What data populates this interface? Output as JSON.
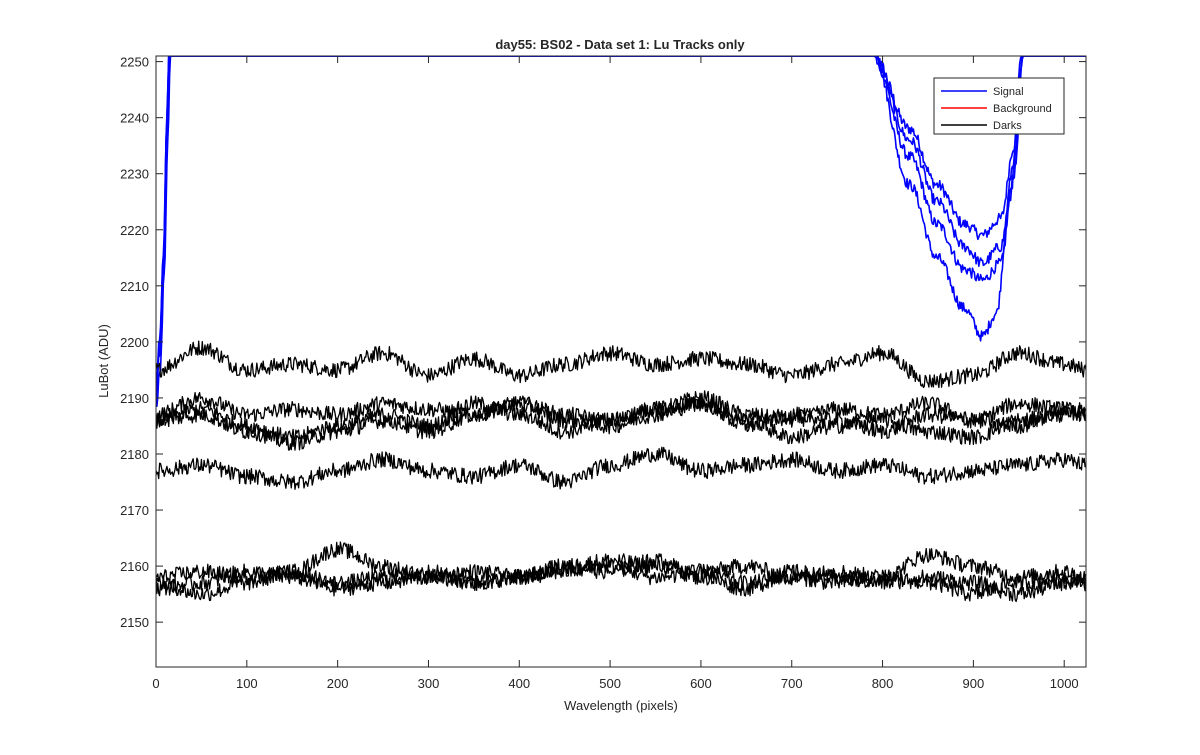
{
  "chart_data": {
    "type": "line",
    "title": "day55: BS02 - Data set 1: Lu Tracks only",
    "xlabel": "Wavelength (pixels)",
    "ylabel": "LuBot (ADU)",
    "xlim": [
      0,
      1024
    ],
    "ylim": [
      2142,
      2251
    ],
    "xticks": [
      0,
      100,
      200,
      300,
      400,
      500,
      600,
      700,
      800,
      900,
      1000
    ],
    "yticks": [
      2150,
      2160,
      2170,
      2180,
      2190,
      2200,
      2210,
      2220,
      2230,
      2240,
      2250
    ],
    "grid": false,
    "legend": {
      "placement": "top-right",
      "entries": [
        {
          "label": "Signal",
          "color": "#0000ff"
        },
        {
          "label": "Background",
          "color": "#ff0000"
        },
        {
          "label": "Darks",
          "color": "#000000"
        }
      ]
    },
    "series": [
      {
        "group": "Signal",
        "color": "#0000ff",
        "points": [
          [
            0,
            2192
          ],
          [
            4,
            2200
          ],
          [
            8,
            2215
          ],
          [
            12,
            2240
          ],
          [
            14,
            2251
          ],
          [
            790,
            2251
          ],
          [
            830,
            2238
          ],
          [
            860,
            2228
          ],
          [
            890,
            2221
          ],
          [
            910,
            2219
          ],
          [
            930,
            2222
          ],
          [
            945,
            2235
          ],
          [
            955,
            2251
          ],
          [
            1024,
            2251
          ]
        ]
      },
      {
        "group": "Signal",
        "color": "#0000ff",
        "points": [
          [
            0,
            2190
          ],
          [
            4,
            2198
          ],
          [
            8,
            2213
          ],
          [
            12,
            2238
          ],
          [
            15,
            2251
          ],
          [
            790,
            2251
          ],
          [
            830,
            2233
          ],
          [
            860,
            2221
          ],
          [
            890,
            2213
          ],
          [
            910,
            2211
          ],
          [
            930,
            2214
          ],
          [
            945,
            2230
          ],
          [
            955,
            2251
          ],
          [
            1024,
            2251
          ]
        ]
      },
      {
        "group": "Signal",
        "color": "#0000ff",
        "points": [
          [
            0,
            2188
          ],
          [
            5,
            2196
          ],
          [
            9,
            2212
          ],
          [
            13,
            2236
          ],
          [
            16,
            2251
          ],
          [
            790,
            2251
          ],
          [
            830,
            2228
          ],
          [
            860,
            2215
          ],
          [
            890,
            2206
          ],
          [
            910,
            2201
          ],
          [
            925,
            2205
          ],
          [
            940,
            2225
          ],
          [
            953,
            2251
          ],
          [
            1024,
            2251
          ]
        ]
      },
      {
        "group": "Signal",
        "color": "#0000ff",
        "points": [
          [
            0,
            2191
          ],
          [
            4,
            2199
          ],
          [
            8,
            2214
          ],
          [
            12,
            2239
          ],
          [
            14,
            2251
          ],
          [
            790,
            2251
          ],
          [
            830,
            2236
          ],
          [
            860,
            2225
          ],
          [
            890,
            2217
          ],
          [
            910,
            2214
          ],
          [
            930,
            2217
          ],
          [
            945,
            2232
          ],
          [
            955,
            2251
          ],
          [
            1024,
            2251
          ]
        ]
      },
      {
        "group": "Darks",
        "color": "#000000",
        "points": [
          [
            0,
            2195
          ],
          [
            50,
            2199
          ],
          [
            100,
            2195
          ],
          [
            150,
            2196
          ],
          [
            200,
            2195
          ],
          [
            250,
            2198
          ],
          [
            300,
            2194
          ],
          [
            350,
            2197
          ],
          [
            400,
            2194
          ],
          [
            450,
            2196
          ],
          [
            500,
            2198
          ],
          [
            550,
            2196
          ],
          [
            600,
            2197
          ],
          [
            650,
            2196
          ],
          [
            700,
            2194
          ],
          [
            750,
            2196
          ],
          [
            800,
            2198
          ],
          [
            850,
            2193
          ],
          [
            900,
            2194
          ],
          [
            950,
            2198
          ],
          [
            1000,
            2196
          ],
          [
            1024,
            2195
          ]
        ]
      },
      {
        "group": "Darks",
        "color": "#000000",
        "points": [
          [
            0,
            2187
          ],
          [
            50,
            2190
          ],
          [
            100,
            2187
          ],
          [
            150,
            2188
          ],
          [
            200,
            2187
          ],
          [
            250,
            2189
          ],
          [
            300,
            2188
          ],
          [
            350,
            2187
          ],
          [
            400,
            2189
          ],
          [
            450,
            2187
          ],
          [
            500,
            2186
          ],
          [
            550,
            2188
          ],
          [
            600,
            2190
          ],
          [
            650,
            2187
          ],
          [
            700,
            2186
          ],
          [
            750,
            2188
          ],
          [
            800,
            2187
          ],
          [
            850,
            2189
          ],
          [
            900,
            2186
          ],
          [
            950,
            2189
          ],
          [
            1000,
            2188
          ],
          [
            1024,
            2187
          ]
        ]
      },
      {
        "group": "Darks",
        "color": "#000000",
        "points": [
          [
            0,
            2186
          ],
          [
            50,
            2188
          ],
          [
            100,
            2185
          ],
          [
            150,
            2183
          ],
          [
            200,
            2185
          ],
          [
            250,
            2187
          ],
          [
            300,
            2185
          ],
          [
            350,
            2189
          ],
          [
            400,
            2187
          ],
          [
            450,
            2184
          ],
          [
            500,
            2186
          ],
          [
            550,
            2188
          ],
          [
            600,
            2189
          ],
          [
            650,
            2185
          ],
          [
            700,
            2187
          ],
          [
            750,
            2186
          ],
          [
            800,
            2184
          ],
          [
            850,
            2187
          ],
          [
            900,
            2186
          ],
          [
            950,
            2185
          ],
          [
            1000,
            2188
          ],
          [
            1024,
            2187
          ]
        ]
      },
      {
        "group": "Darks",
        "color": "#000000",
        "points": [
          [
            0,
            2186
          ],
          [
            50,
            2187
          ],
          [
            100,
            2184
          ],
          [
            150,
            2182
          ],
          [
            200,
            2184
          ],
          [
            250,
            2186
          ],
          [
            300,
            2184
          ],
          [
            350,
            2187
          ],
          [
            400,
            2189
          ],
          [
            450,
            2186
          ],
          [
            500,
            2185
          ],
          [
            550,
            2187
          ],
          [
            600,
            2189
          ],
          [
            650,
            2186
          ],
          [
            700,
            2183
          ],
          [
            750,
            2185
          ],
          [
            800,
            2186
          ],
          [
            850,
            2184
          ],
          [
            900,
            2183
          ],
          [
            950,
            2186
          ],
          [
            1000,
            2187
          ],
          [
            1024,
            2188
          ]
        ]
      },
      {
        "group": "Darks",
        "color": "#000000",
        "points": [
          [
            0,
            2177
          ],
          [
            50,
            2178
          ],
          [
            100,
            2176
          ],
          [
            150,
            2175
          ],
          [
            200,
            2177
          ],
          [
            250,
            2179
          ],
          [
            300,
            2177
          ],
          [
            350,
            2176
          ],
          [
            400,
            2178
          ],
          [
            450,
            2175
          ],
          [
            500,
            2178
          ],
          [
            550,
            2180
          ],
          [
            600,
            2177
          ],
          [
            650,
            2178
          ],
          [
            700,
            2179
          ],
          [
            750,
            2177
          ],
          [
            800,
            2178
          ],
          [
            850,
            2176
          ],
          [
            900,
            2177
          ],
          [
            950,
            2178
          ],
          [
            1000,
            2179
          ],
          [
            1024,
            2178
          ]
        ]
      },
      {
        "group": "Darks",
        "color": "#000000",
        "points": [
          [
            0,
            2158
          ],
          [
            50,
            2159
          ],
          [
            100,
            2158
          ],
          [
            150,
            2159
          ],
          [
            200,
            2163
          ],
          [
            250,
            2160
          ],
          [
            300,
            2158
          ],
          [
            350,
            2157
          ],
          [
            400,
            2158
          ],
          [
            450,
            2160
          ],
          [
            500,
            2161
          ],
          [
            550,
            2160
          ],
          [
            600,
            2159
          ],
          [
            650,
            2160
          ],
          [
            700,
            2158
          ],
          [
            750,
            2159
          ],
          [
            800,
            2158
          ],
          [
            850,
            2162
          ],
          [
            900,
            2160
          ],
          [
            950,
            2158
          ],
          [
            1000,
            2159
          ],
          [
            1024,
            2158
          ]
        ]
      },
      {
        "group": "Darks",
        "color": "#000000",
        "points": [
          [
            0,
            2157
          ],
          [
            50,
            2155
          ],
          [
            100,
            2157
          ],
          [
            150,
            2159
          ],
          [
            200,
            2157
          ],
          [
            250,
            2158
          ],
          [
            300,
            2159
          ],
          [
            350,
            2157
          ],
          [
            400,
            2158
          ],
          [
            450,
            2159
          ],
          [
            500,
            2160
          ],
          [
            550,
            2158
          ],
          [
            600,
            2159
          ],
          [
            650,
            2157
          ],
          [
            700,
            2158
          ],
          [
            750,
            2157
          ],
          [
            800,
            2158
          ],
          [
            850,
            2157
          ],
          [
            900,
            2155
          ],
          [
            950,
            2157
          ],
          [
            1000,
            2158
          ],
          [
            1024,
            2157
          ]
        ]
      },
      {
        "group": "Darks",
        "color": "#000000",
        "points": [
          [
            0,
            2156
          ],
          [
            50,
            2157
          ],
          [
            100,
            2159
          ],
          [
            150,
            2158
          ],
          [
            200,
            2156
          ],
          [
            250,
            2157
          ],
          [
            300,
            2158
          ],
          [
            350,
            2159
          ],
          [
            400,
            2158
          ],
          [
            450,
            2160
          ],
          [
            500,
            2159
          ],
          [
            550,
            2161
          ],
          [
            600,
            2158
          ],
          [
            650,
            2156
          ],
          [
            700,
            2159
          ],
          [
            750,
            2158
          ],
          [
            800,
            2157
          ],
          [
            850,
            2158
          ],
          [
            900,
            2157
          ],
          [
            950,
            2155
          ],
          [
            1000,
            2157
          ],
          [
            1024,
            2158
          ]
        ]
      }
    ]
  }
}
